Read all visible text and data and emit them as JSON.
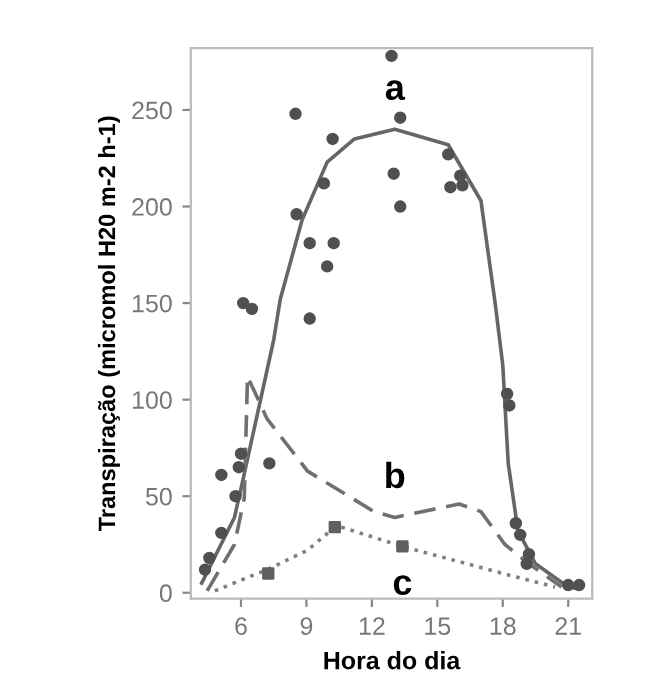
{
  "chart_data": {
    "type": "line",
    "xlabel": "Hora do dia",
    "ylabel": "Transpiração (micromol H20 m-2 h-1)",
    "xlim": [
      3.7,
      22.1
    ],
    "ylim": [
      -3,
      282
    ],
    "xticks": [
      6,
      9,
      12,
      15,
      18,
      21
    ],
    "yticks": [
      0,
      50,
      100,
      150,
      200,
      250
    ],
    "grid": false,
    "legend": false,
    "series": [
      {
        "type": "scatter",
        "color": "#505050",
        "marker": "circle",
        "x": [
          8.5,
          10.2,
          9.8,
          8.55,
          9.15,
          10.25,
          9.95,
          6.1,
          6.5,
          9.15,
          12.9,
          13.3,
          15.5,
          13.0,
          16.05,
          15.6,
          16.15,
          13.3,
          7.3,
          6.0,
          5.9,
          5.1,
          5.75,
          5.1,
          4.55,
          4.35,
          18.2,
          18.3,
          18.6,
          18.8,
          19.2,
          19.1,
          21.0,
          21.5
        ],
        "values": [
          248,
          235,
          212,
          196,
          181,
          181,
          169,
          150,
          147,
          142,
          278,
          246,
          227,
          217,
          216,
          210,
          211,
          200,
          67,
          72,
          65,
          61,
          50,
          31,
          18,
          12,
          103,
          97,
          36,
          30,
          20,
          15,
          4,
          4
        ]
      },
      {
        "name": "a",
        "color": "#666666",
        "line_style": "solid",
        "x": [
          4.2,
          5.7,
          6.1,
          7.5,
          7.8,
          8.8,
          9.95,
          11.2,
          13.05,
          15.5,
          17.0,
          17.65,
          18.0,
          18.25,
          18.7,
          19.5,
          21.0,
          21.5
        ],
        "values": [
          5,
          39,
          59,
          131,
          152,
          193,
          223,
          235,
          240,
          232,
          203,
          150,
          118,
          67,
          32,
          15,
          3,
          2
        ]
      },
      {
        "name": "b",
        "color": "#707070",
        "line_style": "dashed",
        "x": [
          4.45,
          5.7,
          6.15,
          6.3,
          7.2,
          9.05,
          12.1,
          13.05,
          16.0,
          17.0,
          18.1,
          19.2,
          20.7
        ],
        "values": [
          1,
          25,
          49,
          112,
          90,
          63,
          42,
          39,
          46,
          42,
          25,
          15,
          3
        ]
      },
      {
        "name": "c",
        "color": "#808080",
        "line_style": "dotted",
        "x": [
          4.8,
          7.2,
          9.05,
          10.3,
          10.6,
          13.4,
          18.0,
          20.4
        ],
        "values": [
          1,
          12,
          22,
          34,
          34,
          24,
          10,
          3
        ]
      },
      {
        "type": "scatter",
        "color": "#606060",
        "marker": "square",
        "x": [
          7.25,
          10.3,
          13.4
        ],
        "values": [
          10,
          34,
          24
        ]
      }
    ]
  }
}
